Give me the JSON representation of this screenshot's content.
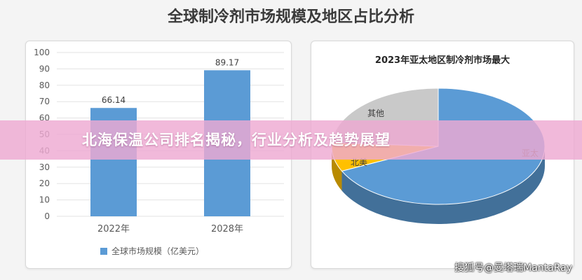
{
  "page": {
    "title": "全球制冷剂市场规模及地区占比分析",
    "banner": "北海保温公司排名揭秘，行业分析及趋势展望",
    "watermark": "搜狐号@曼塔瑞MantaRay"
  },
  "chart_data": [
    {
      "type": "bar",
      "title": "",
      "categories": [
        "2022年",
        "2028年"
      ],
      "series": [
        {
          "name": "全球市场规模（亿美元）",
          "values": [
            66.14,
            89.17
          ],
          "color": "#5b9bd5"
        }
      ],
      "ylim": [
        0,
        100
      ],
      "yticks": [
        0,
        10,
        20,
        30,
        40,
        50,
        60,
        70,
        80,
        90,
        100
      ],
      "data_labels": [
        "66.14",
        "89.17"
      ],
      "grid": true,
      "legend": "bottom"
    },
    {
      "type": "pie",
      "title": "2023年亚太地区制冷剂市场最大",
      "labels": [
        "亚太",
        "北美",
        "其他"
      ],
      "values": [
        0.68,
        0.08,
        0.24
      ],
      "colors": [
        "#5b9bd5",
        "#ffc000",
        "#c9c9c9"
      ],
      "style": "3d"
    }
  ]
}
